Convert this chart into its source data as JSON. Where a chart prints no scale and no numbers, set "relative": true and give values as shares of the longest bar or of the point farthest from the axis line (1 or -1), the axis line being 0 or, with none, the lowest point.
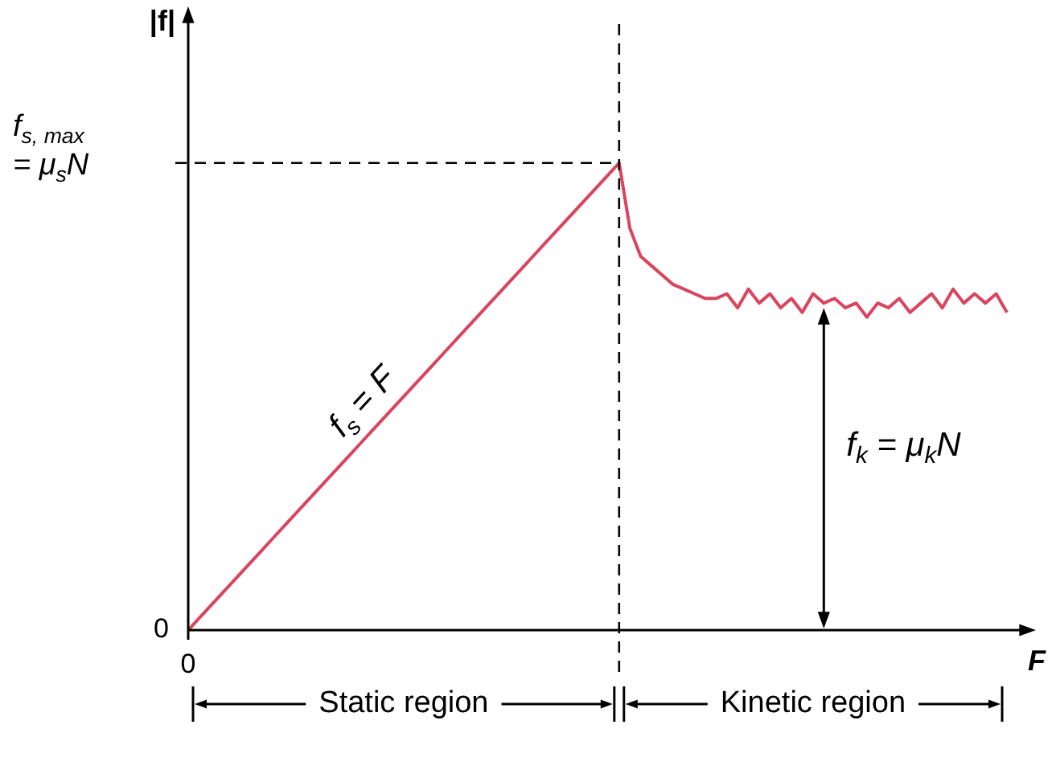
{
  "chart_data": {
    "type": "line",
    "relative": true,
    "xlabel": "F",
    "ylabel": "|f|",
    "color": "#d9455f",
    "marker": "none",
    "line_style": "solid",
    "grid": false,
    "legend": false,
    "categories": [
      null,
      null,
      null,
      null,
      null,
      null,
      null,
      null,
      null,
      null,
      null,
      null,
      null,
      null,
      null,
      null,
      null,
      null,
      null,
      null,
      null,
      null,
      null,
      null,
      null,
      null,
      null,
      null,
      null,
      null,
      null,
      null,
      null,
      null,
      null,
      null,
      null,
      null,
      null,
      null,
      null,
      null,
      null,
      null,
      null,
      null,
      null,
      null,
      null,
      null,
      null,
      null,
      null,
      null,
      null,
      null,
      null,
      null,
      null,
      null,
      null,
      null,
      null,
      null,
      null,
      null,
      null,
      null,
      null,
      null,
      null,
      null,
      null,
      null,
      null,
      null,
      null
    ],
    "values": [
      0,
      0.025,
      0.05,
      0.075,
      0.1,
      0.125,
      0.15,
      0.175,
      0.2,
      0.225,
      0.25,
      0.275,
      0.3,
      0.325,
      0.35,
      0.375,
      0.4,
      0.425,
      0.45,
      0.475,
      0.5,
      0.525,
      0.55,
      0.575,
      0.6,
      0.625,
      0.65,
      0.675,
      0.7,
      0.725,
      0.75,
      0.775,
      0.8,
      0.825,
      0.85,
      0.875,
      0.9,
      0.925,
      0.95,
      0.975,
      1,
      0.86,
      0.8,
      0.78,
      0.76,
      0.74,
      0.73,
      0.72,
      0.71,
      0.71,
      0.72,
      0.69,
      0.73,
      0.7,
      0.72,
      0.69,
      0.71,
      0.68,
      0.72,
      0.7,
      0.71,
      0.69,
      0.7,
      0.67,
      0.7,
      0.69,
      0.71,
      0.68,
      0.7,
      0.72,
      0.69,
      0.73,
      0.7,
      0.72,
      0.7,
      0.72,
      0.68
    ],
    "ref_lines": [
      {
        "axis": "y",
        "value": 1,
        "label": "f$_{s, max}$\n= μ$_{s}$N",
        "line_style": "dashed",
        "color": "#000000"
      },
      {
        "axis": "x",
        "line_style": "dashed",
        "color": "#000000"
      }
    ],
    "annotations": [
      "0",
      "0",
      "f$_{s}$ = F",
      "f$_{k}$ = μ$_{k}$N",
      "Static region",
      "Kinetic region"
    ]
  }
}
